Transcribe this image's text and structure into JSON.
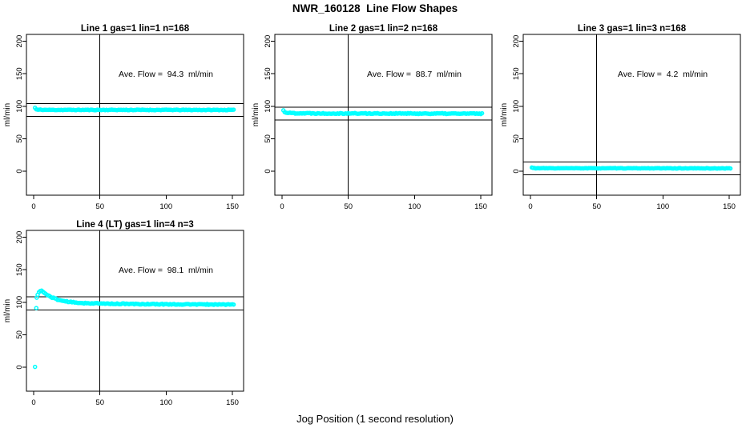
{
  "page": {
    "title": "NWR_160128  Line Flow Shapes",
    "xlabel": "Jog Position (1 second resolution)"
  },
  "colors": {
    "marker": "#00ffff",
    "axis": "#000000",
    "background": "#ffffff"
  },
  "chart_data": [
    {
      "type": "scatter",
      "title": "Line 1 gas=1 lin=1 n=168",
      "annotation": "Ave. Flow =  94.3  ml/min",
      "ave_flow_ml_min": 94.3,
      "gas": 1,
      "lin": 1,
      "n": 168,
      "ylabel": "ml/min",
      "xlim": [
        -5.5,
        158.5
      ],
      "ylim": [
        -37,
        211
      ],
      "xticks": [
        0,
        50,
        100,
        150
      ],
      "yticks": [
        0,
        50,
        100,
        150,
        200
      ],
      "vline_x": 50,
      "hlines": [
        104.3,
        84.3
      ],
      "marker_color": "#00ffff",
      "x_start": 1,
      "x_end": 151,
      "jitter": 0.5,
      "seed": 11,
      "keypoints": [
        [
          1,
          97.7
        ],
        [
          2,
          95.2
        ],
        [
          3,
          94.6
        ],
        [
          10,
          94.4
        ],
        [
          151,
          94.3
        ]
      ],
      "outliers": []
    },
    {
      "type": "scatter",
      "title": "Line 2 gas=1 lin=2 n=168",
      "annotation": "Ave. Flow =  88.7  ml/min",
      "ave_flow_ml_min": 88.7,
      "gas": 1,
      "lin": 2,
      "n": 168,
      "ylabel": "ml/min",
      "xlim": [
        -5.5,
        158.5
      ],
      "ylim": [
        -37,
        211
      ],
      "xticks": [
        0,
        50,
        100,
        150
      ],
      "yticks": [
        0,
        50,
        100,
        150,
        200
      ],
      "vline_x": 50,
      "hlines": [
        98.7,
        78.7
      ],
      "marker_color": "#00ffff",
      "x_start": 1,
      "x_end": 151,
      "jitter": 0.7,
      "seed": 22,
      "keypoints": [
        [
          1,
          93.5
        ],
        [
          2,
          91.3
        ],
        [
          3,
          90.4
        ],
        [
          5,
          89.8
        ],
        [
          10,
          89.3
        ],
        [
          30,
          89.0
        ],
        [
          151,
          88.6
        ]
      ],
      "outliers": []
    },
    {
      "type": "scatter",
      "title": "Line 3 gas=1 lin=3 n=168",
      "annotation": "Ave. Flow =  4.2  ml/min",
      "ave_flow_ml_min": 4.2,
      "gas": 1,
      "lin": 3,
      "n": 168,
      "ylabel": "ml/min",
      "xlim": [
        -5.5,
        158.5
      ],
      "ylim": [
        -37,
        211
      ],
      "xticks": [
        0,
        50,
        100,
        150
      ],
      "yticks": [
        0,
        50,
        100,
        150,
        200
      ],
      "vline_x": 50,
      "hlines": [
        14.2,
        -5.8
      ],
      "marker_color": "#00ffff",
      "x_start": 1,
      "x_end": 151,
      "jitter": 0.35,
      "seed": 33,
      "keypoints": [
        [
          1,
          5.6
        ],
        [
          2,
          4.9
        ],
        [
          5,
          4.6
        ],
        [
          151,
          4.4
        ]
      ],
      "outliers": []
    },
    {
      "type": "scatter",
      "title": "Line 4 (LT) gas=1 lin=4 n=3",
      "annotation": "Ave. Flow =  98.1  ml/min",
      "ave_flow_ml_min": 98.1,
      "gas": 1,
      "lin": 4,
      "n": 3,
      "ylabel": "ml/min",
      "xlim": [
        -5.5,
        158.5
      ],
      "ylim": [
        -37,
        211
      ],
      "xticks": [
        0,
        50,
        100,
        150
      ],
      "yticks": [
        0,
        50,
        100,
        150,
        200
      ],
      "vline_x": 50,
      "hlines": [
        108.1,
        88.1
      ],
      "marker_color": "#00ffff",
      "x_start": 3,
      "x_end": 151,
      "jitter": 0.7,
      "seed": 44,
      "keypoints": [
        [
          3,
          111
        ],
        [
          4,
          116
        ],
        [
          5,
          118
        ],
        [
          6,
          117.5
        ],
        [
          7,
          116
        ],
        [
          8,
          114.5
        ],
        [
          10,
          111.5
        ],
        [
          12,
          109.3
        ],
        [
          14,
          107.3
        ],
        [
          16,
          105.6
        ],
        [
          18,
          104.2
        ],
        [
          20,
          103
        ],
        [
          23,
          101.8
        ],
        [
          26,
          100.8
        ],
        [
          30,
          99.8
        ],
        [
          34,
          99.2
        ],
        [
          38,
          98.7
        ],
        [
          44,
          98.3
        ],
        [
          50,
          98.0
        ],
        [
          60,
          97.7
        ],
        [
          70,
          97.4
        ],
        [
          85,
          97.1
        ],
        [
          100,
          96.9
        ],
        [
          120,
          96.7
        ],
        [
          151,
          96.5
        ]
      ],
      "outliers": [
        [
          1,
          0.5
        ],
        [
          2,
          91
        ],
        [
          2.3,
          107
        ]
      ]
    }
  ]
}
